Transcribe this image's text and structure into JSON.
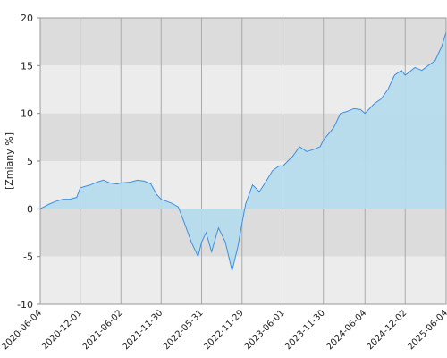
{
  "chart_data": {
    "type": "area",
    "y_label": "[Zmiany %]",
    "color": "#3d8fe0",
    "fill": "#b5dcee",
    "x": [
      "2020-06-04",
      "2020-07-15",
      "2020-08-15",
      "2020-09-15",
      "2020-10-15",
      "2020-11-15",
      "2020-12-01",
      "2021-01-15",
      "2021-02-15",
      "2021-03-15",
      "2021-04-15",
      "2021-05-15",
      "2021-06-02",
      "2021-07-15",
      "2021-08-15",
      "2021-09-15",
      "2021-10-15",
      "2021-11-10",
      "2021-11-30",
      "2022-01-15",
      "2022-02-15",
      "2022-03-15",
      "2022-04-15",
      "2022-05-15",
      "2022-05-31",
      "2022-06-20",
      "2022-07-15",
      "2022-08-15",
      "2022-09-15",
      "2022-10-15",
      "2022-11-10",
      "2022-11-29",
      "2022-12-15",
      "2023-01-15",
      "2023-02-15",
      "2023-03-15",
      "2023-04-15",
      "2023-05-15",
      "2023-06-01",
      "2023-07-15",
      "2023-08-15",
      "2023-09-15",
      "2023-10-15",
      "2023-11-15",
      "2023-11-30",
      "2024-01-15",
      "2024-02-15",
      "2024-03-15",
      "2024-04-15",
      "2024-05-15",
      "2024-06-04",
      "2024-07-15",
      "2024-08-15",
      "2024-09-15",
      "2024-10-15",
      "2024-11-15",
      "2024-12-02",
      "2025-01-15",
      "2025-02-15",
      "2025-03-15",
      "2025-04-15",
      "2025-05-15",
      "2025-06-04"
    ],
    "values": [
      0,
      0.5,
      0.8,
      1.0,
      1.0,
      1.2,
      2.2,
      2.5,
      2.8,
      3.0,
      2.7,
      2.6,
      2.7,
      2.8,
      3.0,
      2.9,
      2.6,
      1.5,
      1.0,
      0.6,
      0.2,
      -1.5,
      -3.5,
      -5.0,
      -3.5,
      -2.5,
      -4.5,
      -2.0,
      -3.5,
      -6.5,
      -4.0,
      -1.5,
      0.5,
      2.5,
      1.8,
      2.8,
      4.0,
      4.5,
      4.5,
      5.5,
      6.5,
      6.0,
      6.2,
      6.5,
      7.2,
      8.5,
      10.0,
      10.2,
      10.5,
      10.4,
      10.0,
      11.0,
      11.5,
      12.5,
      14.0,
      14.5,
      14.0,
      14.8,
      14.5,
      15.0,
      15.5,
      17.0,
      18.5
    ],
    "xlim": [
      "2020-06-04",
      "2025-06-04"
    ],
    "xticks": [
      "2020-06-04",
      "2020-12-01",
      "2021-06-02",
      "2021-11-30",
      "2022-05-31",
      "2022-11-29",
      "2023-06-01",
      "2023-11-30",
      "2024-06-04",
      "2024-12-02",
      "2025-06-04"
    ],
    "ylim": [
      -10,
      20
    ],
    "yticks": [
      20,
      15,
      10,
      5,
      0,
      -5,
      -10
    ],
    "grid": true
  }
}
